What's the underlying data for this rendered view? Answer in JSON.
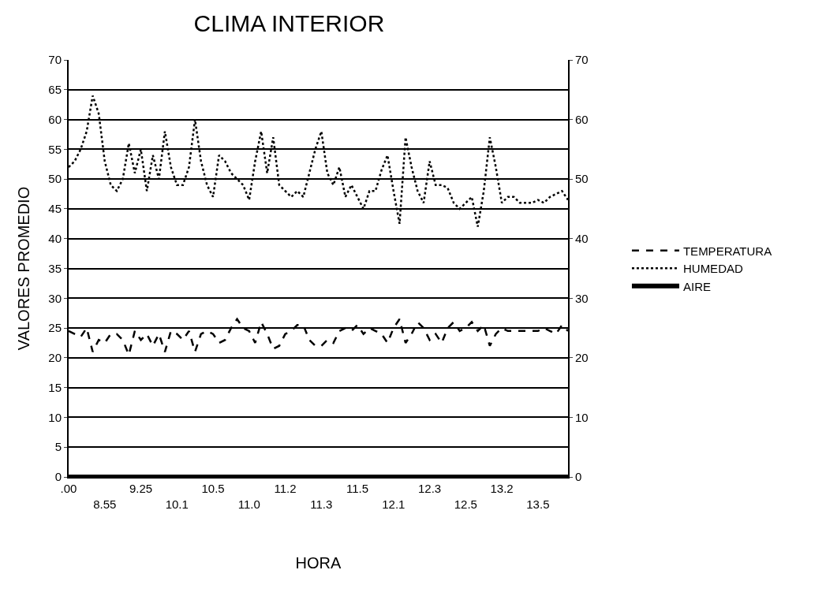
{
  "chart_data": {
    "type": "line",
    "title": "CLIMA INTERIOR",
    "xlabel": "HORA",
    "ylabel": "VALORES PROMEDIO",
    "categories": [
      ".00",
      null,
      null,
      null,
      null,
      null,
      "8.55",
      null,
      null,
      null,
      null,
      null,
      "9.25",
      null,
      null,
      null,
      null,
      null,
      "10.1",
      null,
      null,
      null,
      null,
      null,
      "10.5",
      null,
      null,
      null,
      null,
      null,
      "11.0",
      null,
      null,
      null,
      null,
      null,
      "11.2",
      null,
      null,
      null,
      null,
      null,
      "11.3",
      null,
      null,
      null,
      null,
      null,
      "11.5",
      null,
      null,
      null,
      null,
      null,
      "12.1",
      null,
      null,
      null,
      null,
      null,
      "12.3",
      null,
      null,
      null,
      null,
      null,
      "12.5",
      null,
      null,
      null,
      null,
      null,
      "13.2",
      null,
      null,
      null,
      null,
      null,
      "13.5",
      null,
      null,
      null,
      null,
      null
    ],
    "series": [
      {
        "name": "TEMPERATURA",
        "color": "#000000",
        "line_style": "dashed",
        "values": [
          24.5,
          24,
          23.5,
          25,
          21,
          23,
          22.5,
          24,
          24,
          23,
          20.5,
          24.5,
          23,
          24,
          22,
          24,
          21,
          24.5,
          24,
          23,
          24.5,
          21,
          24,
          24.5,
          24,
          22.5,
          23,
          25,
          26.5,
          25,
          24.5,
          22.5,
          26,
          24,
          21.5,
          22,
          24,
          24.5,
          25.5,
          25.5,
          23,
          22,
          22,
          23,
          22.5,
          24.5,
          25,
          24.5,
          25.5,
          24,
          25,
          24.5,
          24,
          22.5,
          25,
          26.5,
          22.5,
          24,
          26,
          25,
          23,
          24,
          22.5,
          25,
          26,
          24.5,
          25,
          26,
          24.5,
          25.5,
          22,
          24,
          25,
          24.5,
          24.5,
          24.5,
          24.5,
          24.5,
          24.5,
          25,
          24.5,
          24,
          25.5,
          24.5
        ]
      },
      {
        "name": "HUMEDAD",
        "color": "#000000",
        "line_style": "dotted",
        "values": [
          52,
          53,
          55,
          58,
          64,
          61,
          53,
          49,
          48,
          50,
          56,
          51,
          55,
          48,
          54,
          50,
          58,
          52,
          49,
          49,
          52,
          60,
          53,
          49,
          47,
          54,
          53,
          51,
          50,
          49,
          46.5,
          53,
          58,
          51,
          57,
          49,
          48,
          47,
          48,
          47,
          51,
          55,
          58,
          51,
          49,
          52,
          47,
          49,
          47,
          45,
          48,
          48,
          51.5,
          54,
          48,
          42.5,
          57,
          52,
          48,
          46,
          53,
          49,
          49,
          48.5,
          46,
          45,
          46,
          47,
          42,
          48,
          57,
          52,
          46,
          47,
          47,
          46,
          46,
          46,
          46.5,
          46,
          47,
          47.5,
          48,
          46.5
        ]
      },
      {
        "name": "AIRE",
        "color": "#000000",
        "line_style": "solid",
        "values": [
          0,
          0,
          0,
          0,
          0,
          0,
          0,
          0,
          0,
          0,
          0,
          0,
          0,
          0,
          0,
          0,
          0,
          0,
          0,
          0,
          0,
          0,
          0,
          0,
          0,
          0,
          0,
          0,
          0,
          0,
          0,
          0,
          0,
          0,
          0,
          0,
          0,
          0,
          0,
          0,
          0,
          0,
          0,
          0,
          0,
          0,
          0,
          0,
          0,
          0,
          0,
          0,
          0,
          0,
          0,
          0,
          0,
          0,
          0,
          0,
          0,
          0,
          0,
          0,
          0,
          0,
          0,
          0,
          0,
          0,
          0,
          0,
          0,
          0,
          0,
          0,
          0,
          0,
          0,
          0,
          0,
          0,
          0,
          0
        ]
      }
    ],
    "ylim": [
      0,
      70
    ],
    "yticks": [
      0,
      5,
      10,
      15,
      20,
      25,
      30,
      35,
      40,
      45,
      50,
      55,
      60,
      65,
      70
    ],
    "y2lim": [
      0,
      70
    ],
    "y2ticks": [
      0,
      10,
      20,
      30,
      40,
      50,
      60,
      70
    ],
    "grid": "y",
    "legend": "right",
    "marker": "none"
  }
}
